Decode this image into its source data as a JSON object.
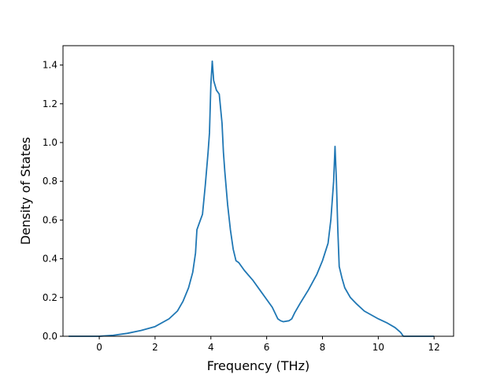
{
  "chart_data": {
    "type": "line",
    "title": "",
    "xlabel": "Frequency (THz)",
    "ylabel": "Density of States",
    "xlim": [
      -1.3,
      12.7
    ],
    "ylim": [
      0.0,
      1.5
    ],
    "xticks": [
      0,
      2,
      4,
      6,
      8,
      10,
      12
    ],
    "xtick_labels": [
      "0",
      "2",
      "4",
      "6",
      "8",
      "10",
      "12"
    ],
    "yticks": [
      0.0,
      0.2,
      0.4,
      0.6,
      0.8,
      1.0,
      1.2,
      1.4
    ],
    "ytick_labels": [
      "0.0",
      "0.2",
      "0.4",
      "0.6",
      "0.8",
      "1.0",
      "1.2",
      "1.4"
    ],
    "grid": false,
    "line_color": "#1f77b4",
    "series": [
      {
        "x": [
          -1.1,
          -0.5,
          0.0,
          0.5,
          1.0,
          1.5,
          2.0,
          2.5,
          2.8,
          3.0,
          3.2,
          3.35,
          3.45,
          3.5,
          3.6,
          3.7,
          3.8,
          3.9,
          3.95,
          4.0,
          4.05,
          4.1,
          4.2,
          4.3,
          4.4,
          4.45,
          4.5,
          4.6,
          4.7,
          4.8,
          4.9,
          5.0,
          5.2,
          5.5,
          5.8,
          6.0,
          6.2,
          6.4,
          6.5,
          6.6,
          6.8,
          6.9,
          7.0,
          7.2,
          7.5,
          7.8,
          8.0,
          8.2,
          8.3,
          8.4,
          8.45,
          8.5,
          8.55,
          8.6,
          8.7,
          8.8,
          9.0,
          9.2,
          9.5,
          10.0,
          10.3,
          10.6,
          10.8,
          10.9,
          11.0,
          12.0
        ],
        "y": [
          0.0,
          0.0,
          0.0,
          0.005,
          0.015,
          0.03,
          0.05,
          0.09,
          0.13,
          0.18,
          0.25,
          0.33,
          0.43,
          0.55,
          0.59,
          0.63,
          0.78,
          0.95,
          1.05,
          1.3,
          1.42,
          1.32,
          1.27,
          1.25,
          1.1,
          0.95,
          0.85,
          0.68,
          0.55,
          0.45,
          0.39,
          0.38,
          0.34,
          0.29,
          0.23,
          0.19,
          0.15,
          0.09,
          0.08,
          0.075,
          0.08,
          0.09,
          0.12,
          0.17,
          0.24,
          0.32,
          0.39,
          0.48,
          0.6,
          0.8,
          0.98,
          0.8,
          0.55,
          0.36,
          0.3,
          0.25,
          0.2,
          0.17,
          0.13,
          0.09,
          0.07,
          0.045,
          0.02,
          0.0,
          0.0,
          0.0
        ]
      }
    ]
  }
}
